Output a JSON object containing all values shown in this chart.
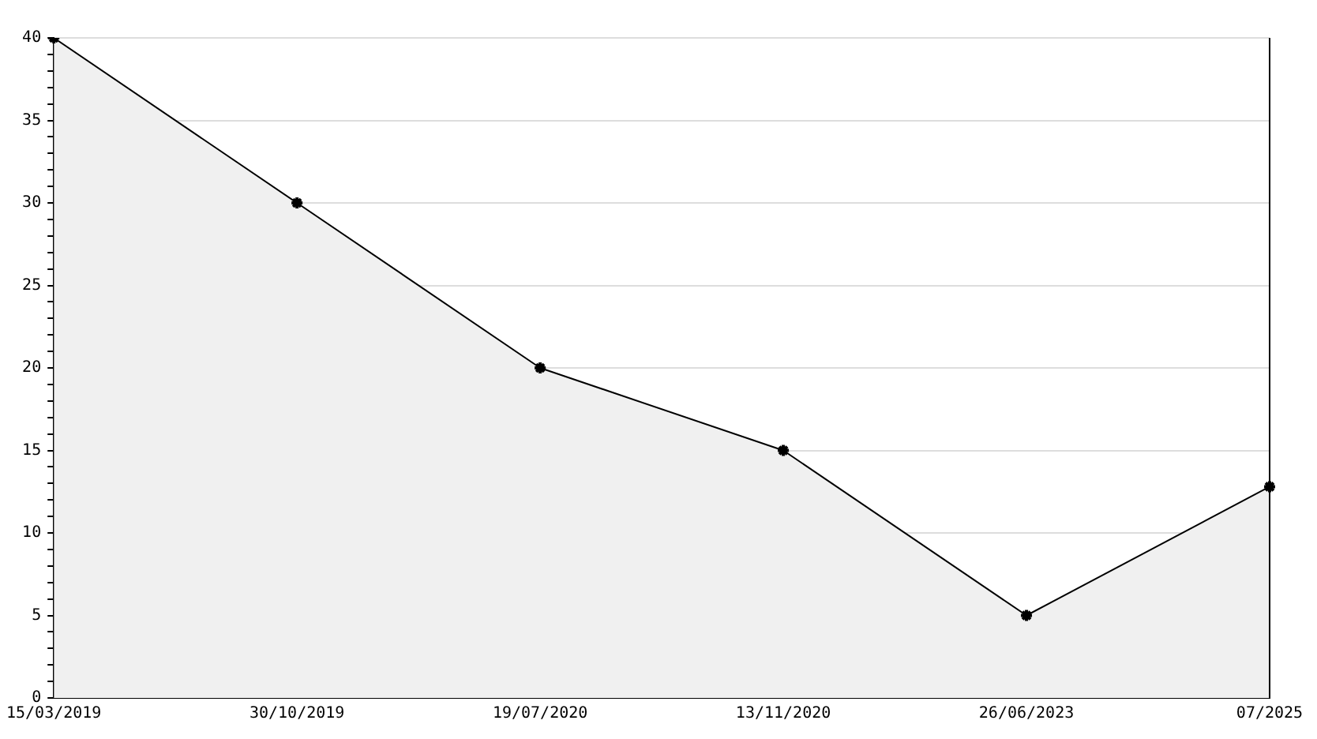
{
  "chart_data": {
    "type": "area",
    "categories": [
      "15/03/2019",
      "30/10/2019",
      "19/07/2020",
      "13/11/2020",
      "26/06/2023",
      "07/2025"
    ],
    "series": [
      {
        "color": "#000000",
        "values": [
          40,
          30,
          20,
          15,
          5,
          12.8
        ]
      }
    ],
    "ylim": [
      0,
      40
    ],
    "yticks": [
      0,
      {
        "value": 1,
        "label": null
      },
      {
        "value": 2,
        "label": null
      },
      {
        "value": 3,
        "label": null
      },
      {
        "value": 4,
        "label": null
      },
      5,
      {
        "value": 6,
        "label": null
      },
      {
        "value": 7,
        "label": null
      },
      {
        "value": 8,
        "label": null
      },
      {
        "value": 9,
        "label": null
      },
      10,
      {
        "value": 11,
        "label": null
      },
      {
        "value": 12,
        "label": null
      },
      {
        "value": 13,
        "label": null
      },
      {
        "value": 14,
        "label": null
      },
      15,
      {
        "value": 16,
        "label": null
      },
      {
        "value": 17,
        "label": null
      },
      {
        "value": 18,
        "label": null
      },
      {
        "value": 19,
        "label": null
      },
      20,
      {
        "value": 21,
        "label": null
      },
      {
        "value": 22,
        "label": null
      },
      {
        "value": 23,
        "label": null
      },
      {
        "value": 24,
        "label": null
      },
      25,
      {
        "value": 26,
        "label": null
      },
      {
        "value": 27,
        "label": null
      },
      {
        "value": 28,
        "label": null
      },
      {
        "value": 29,
        "label": null
      },
      30,
      {
        "value": 31,
        "label": null
      },
      {
        "value": 32,
        "label": null
      },
      {
        "value": 33,
        "label": null
      },
      {
        "value": 34,
        "label": null
      },
      35,
      {
        "value": 36,
        "label": null
      },
      {
        "value": 37,
        "label": null
      },
      {
        "value": 38,
        "label": null
      },
      {
        "value": 39,
        "label": null
      },
      40
    ],
    "grid": "y",
    "legend": false,
    "marker": "cross",
    "line_style": "solid"
  }
}
